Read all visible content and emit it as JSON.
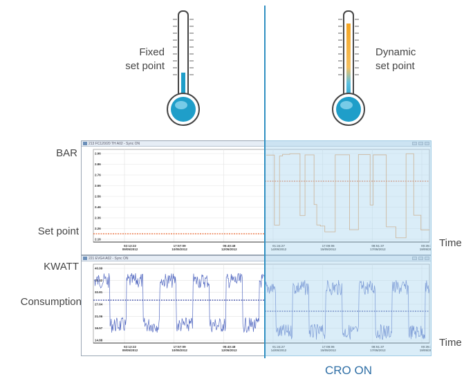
{
  "fixed_label": [
    "Fixed",
    "set point"
  ],
  "dynamic_label": [
    "Dynamic",
    "set point"
  ],
  "left_labels": {
    "bar": "BAR",
    "set_point": "Set point",
    "kwatt": "KWATT",
    "consumption": "Consumption"
  },
  "right_labels": {
    "time_top": "Time",
    "time_bottom": "Time"
  },
  "cro_label": "CRO ON",
  "colors": {
    "cro_line": "#2f8fc1",
    "pressure": "#e8a060",
    "setpoint": "#e8642c",
    "power": "#5268c0",
    "consumption_line": "#2e3f9a",
    "thermo_fixed_fill": "#1f9ec9",
    "thermo_dynamic_fill": "#f5a623"
  },
  "windows": [
    {
      "title": "213 FC120/20 TH A02 - Sync ON",
      "y_ticks": [
        "2.96",
        "2.86",
        "2.76",
        "2.66",
        "2.56",
        "2.46",
        "2.36",
        "2.26",
        "2.16"
      ],
      "x_ticks": [
        [
          "02:13:22",
          "09/05/2012"
        ],
        [
          "17:57:09",
          "10/05/2012"
        ],
        [
          "05:40:48",
          "12/05/2012"
        ],
        [
          "01:24:27",
          "14/05/2012"
        ],
        [
          "17:08:06",
          "15/05/2012"
        ],
        [
          "08:51:37",
          "17/05/2012"
        ],
        [
          "00:35:11",
          "19/05/2012"
        ]
      ]
    },
    {
      "title": "221 EVG4 A02 - Sync ON",
      "y_ticks": [
        "40.99",
        "38.42",
        "32.81",
        "27.64",
        "21.06",
        "16.57",
        "14.88"
      ],
      "x_ticks": [
        [
          "02:13:22",
          "09/05/2012"
        ],
        [
          "17:57:09",
          "10/05/2012"
        ],
        [
          "05:40:48",
          "12/05/2012"
        ],
        [
          "01:24:27",
          "14/05/2012"
        ],
        [
          "17:08:06",
          "15/05/2012"
        ],
        [
          "08:51:37",
          "17/05/2012"
        ],
        [
          "00:35:11",
          "19/05/2012"
        ]
      ]
    }
  ]
}
